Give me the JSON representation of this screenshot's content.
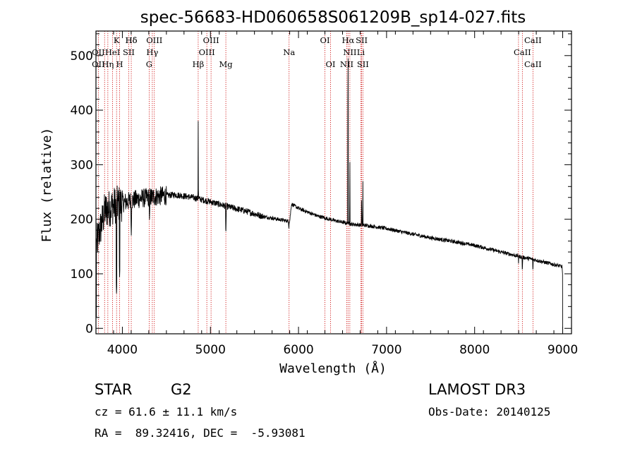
{
  "chart_data": {
    "type": "line",
    "title": "spec-56683-HD060658S061209B_sp14-027.fits",
    "xlabel": "Wavelength (Å)",
    "ylabel": "Flux (relative)",
    "xlim": [
      3700,
      9100
    ],
    "ylim": [
      -10,
      545
    ],
    "xticks": [
      4000,
      5000,
      6000,
      7000,
      8000,
      9000
    ],
    "yticks": [
      0,
      100,
      200,
      300,
      400,
      500
    ],
    "continuum": [
      [
        3700,
        150
      ],
      [
        3800,
        215
      ],
      [
        3900,
        225
      ],
      [
        4000,
        230
      ],
      [
        4200,
        238
      ],
      [
        4400,
        242
      ],
      [
        4600,
        245
      ],
      [
        4800,
        240
      ],
      [
        5000,
        232
      ],
      [
        5200,
        223
      ],
      [
        5400,
        215
      ],
      [
        5600,
        205
      ],
      [
        5800,
        199
      ],
      [
        5900,
        196
      ],
      [
        5920,
        228
      ],
      [
        6000,
        220
      ],
      [
        6200,
        207
      ],
      [
        6400,
        198
      ],
      [
        6600,
        191
      ],
      [
        6800,
        188
      ],
      [
        7000,
        183
      ],
      [
        7200,
        176
      ],
      [
        7500,
        166
      ],
      [
        7800,
        158
      ],
      [
        8000,
        152
      ],
      [
        8200,
        144
      ],
      [
        8500,
        132
      ],
      [
        8700,
        125
      ],
      [
        8900,
        117
      ],
      [
        9000,
        113
      ]
    ],
    "emission_lines": [
      [
        4861,
        380
      ],
      [
        6563,
        520
      ],
      [
        6583,
        330
      ],
      [
        6717,
        285
      ],
      [
        6731,
        270
      ]
    ],
    "absorption_lines": [
      [
        3934,
        60
      ],
      [
        3969,
        90
      ],
      [
        4101,
        170
      ],
      [
        4308,
        195
      ],
      [
        4861,
        200
      ],
      [
        5175,
        170
      ],
      [
        5890,
        175
      ],
      [
        6300,
        190
      ],
      [
        8498,
        115
      ],
      [
        8542,
        100
      ],
      [
        8662,
        100
      ]
    ],
    "spectral_lines": [
      {
        "name": "Hδ",
        "wavelength": 4101,
        "row": 1
      },
      {
        "name": "K",
        "wavelength": 3934,
        "row": 1
      },
      {
        "name": "Hδ",
        "wavelength": 4101,
        "row": 1
      },
      {
        "name": "OIII",
        "wavelength": 4363,
        "row": 1
      },
      {
        "name": "OIII",
        "wavelength": 5007,
        "row": 1
      },
      {
        "name": "OI",
        "wavelength": 6300,
        "row": 1
      },
      {
        "name": "Hα",
        "wavelength": 6563,
        "row": 1
      },
      {
        "name": "SII",
        "wavelength": 6717,
        "row": 1
      },
      {
        "name": "CaII",
        "wavelength": 8662,
        "row": 1
      },
      {
        "name": "OII",
        "wavelength": 3727,
        "row": 2
      },
      {
        "name": "HeI",
        "wavelength": 3889,
        "row": 2
      },
      {
        "name": "SII",
        "wavelength": 4072,
        "row": 2
      },
      {
        "name": "Hγ",
        "wavelength": 4340,
        "row": 2
      },
      {
        "name": "OIII",
        "wavelength": 4959,
        "row": 2
      },
      {
        "name": "Na",
        "wavelength": 5893,
        "row": 2
      },
      {
        "name": "NII",
        "wavelength": 6583,
        "row": 2
      },
      {
        "name": "Li",
        "wavelength": 6708,
        "row": 2
      },
      {
        "name": "CaII",
        "wavelength": 8542,
        "row": 2
      },
      {
        "name": "OII",
        "wavelength": 3727,
        "row": 3
      },
      {
        "name": "Hη",
        "wavelength": 3835,
        "row": 3
      },
      {
        "name": "H",
        "wavelength": 3969,
        "row": 3
      },
      {
        "name": "G",
        "wavelength": 4304,
        "row": 3
      },
      {
        "name": "Hβ",
        "wavelength": 4861,
        "row": 3
      },
      {
        "name": "Mg",
        "wavelength": 5175,
        "row": 3
      },
      {
        "name": "OI",
        "wavelength": 6364,
        "row": 3
      },
      {
        "name": "NII",
        "wavelength": 6548,
        "row": 3
      },
      {
        "name": "SII",
        "wavelength": 6731,
        "row": 3
      },
      {
        "name": "CaII",
        "wavelength": 8662,
        "row": 3
      }
    ],
    "line_markers": [
      3727,
      3798,
      3835,
      3889,
      3934,
      3969,
      4072,
      4101,
      4304,
      4340,
      4363,
      4861,
      4959,
      5007,
      5175,
      5893,
      6300,
      6364,
      6548,
      6563,
      6583,
      6708,
      6717,
      6731,
      8498,
      8542,
      8662
    ]
  },
  "info": {
    "object_class": "STAR",
    "subclass": "G2",
    "survey": "LAMOST DR3",
    "cz": "cz = 61.6 ± 11.1 km/s",
    "obs_date": "Obs-Date: 20140125",
    "coords": "RA =  89.32416, DEC =  -5.93081"
  },
  "colors": {
    "marker": "#cc0000",
    "spectrum": "#000000"
  }
}
